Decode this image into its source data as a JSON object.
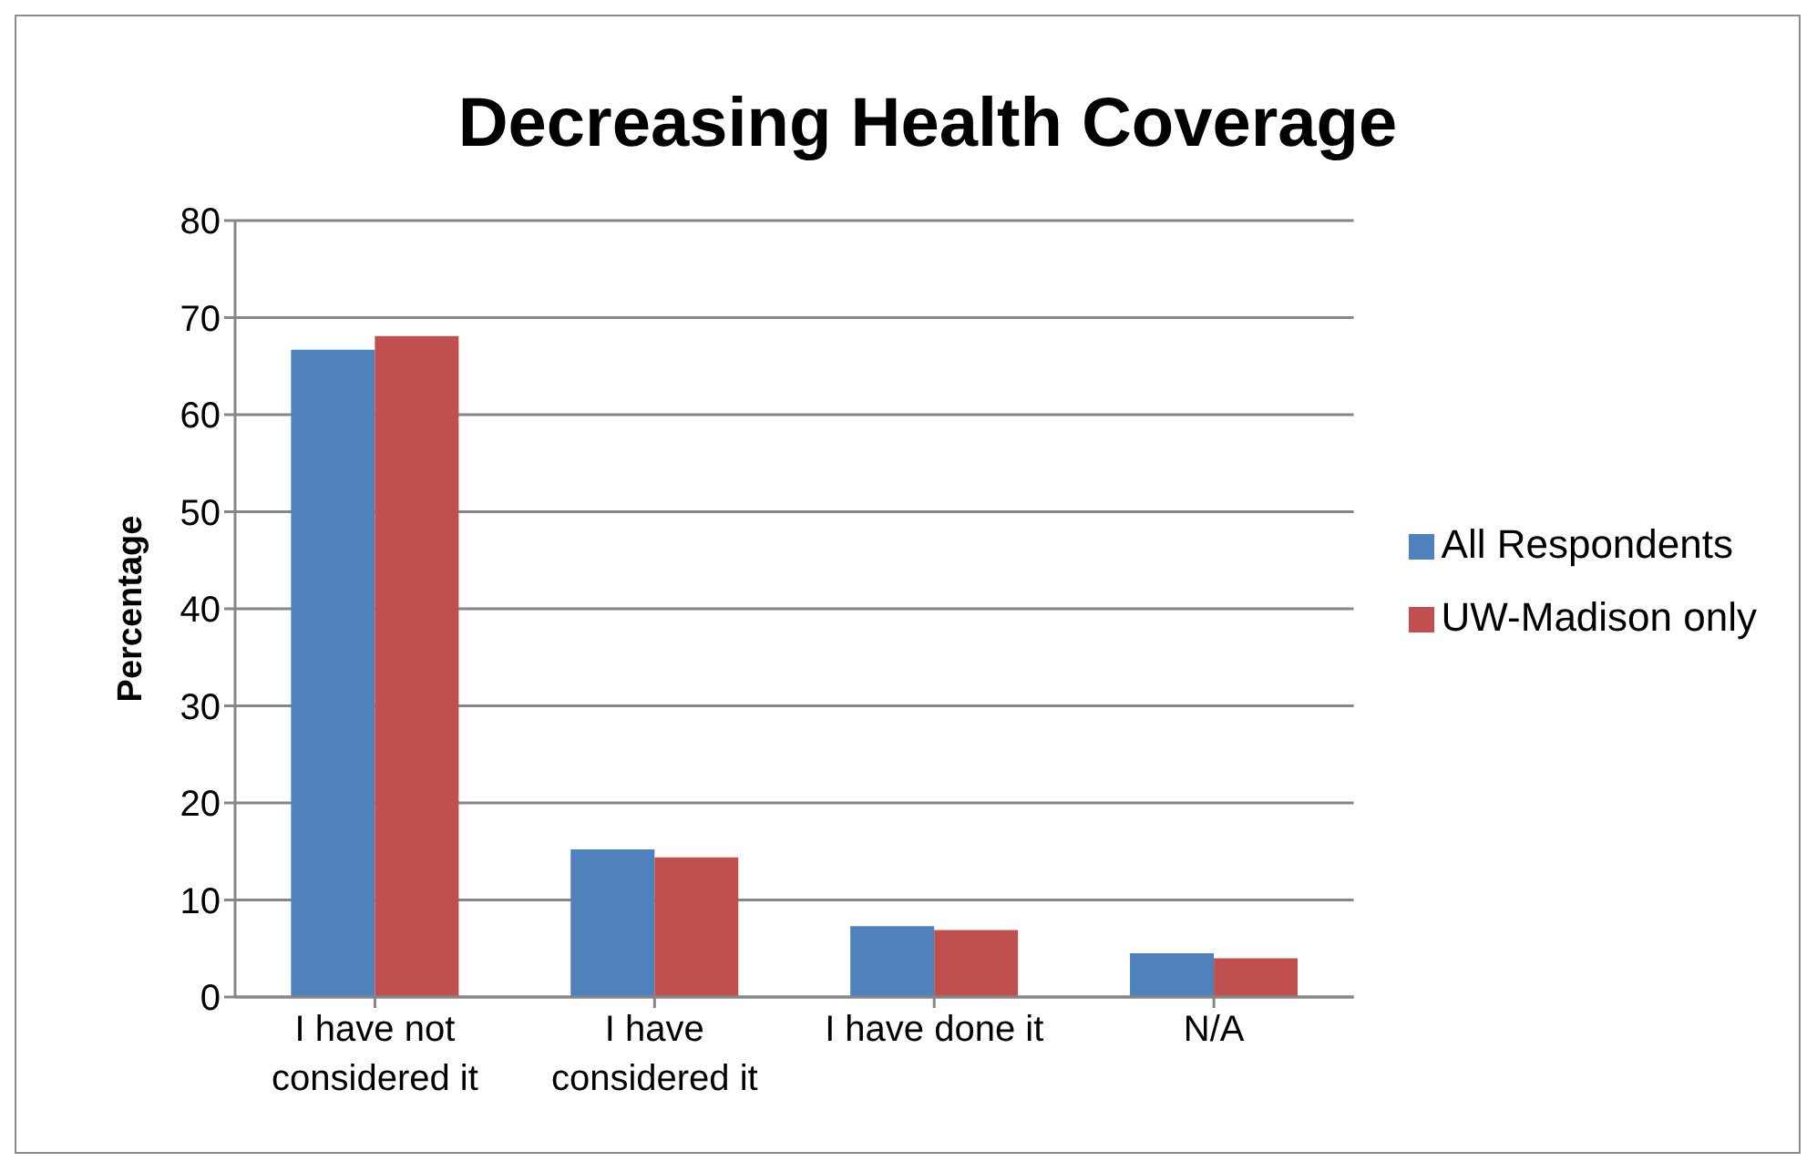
{
  "chart_data": {
    "type": "bar",
    "title": "Decreasing Health Coverage",
    "ylabel": "Percentage",
    "categories": [
      "I have not considered it",
      "I have considered it",
      "I have done it",
      "N/A"
    ],
    "series": [
      {
        "name": "All Respondents",
        "color": "#4f81bd",
        "values": [
          66.7,
          15.2,
          7.3,
          4.5
        ]
      },
      {
        "name": "UW-Madison only",
        "color": "#c0504d",
        "values": [
          68.1,
          14.4,
          6.9,
          4.0
        ]
      }
    ],
    "ylim": [
      0,
      80
    ],
    "yticks": [
      0,
      10,
      20,
      30,
      40,
      50,
      60,
      70,
      80
    ],
    "grid": "y",
    "legend": "right"
  }
}
